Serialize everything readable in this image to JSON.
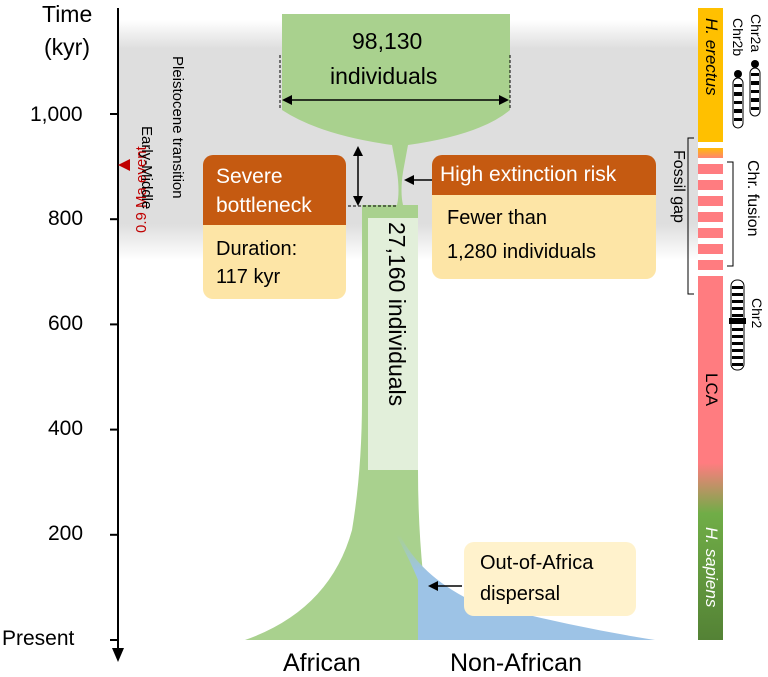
{
  "axis": {
    "title_line1": "Time",
    "title_line2": "(kyr)",
    "ticks": [
      {
        "value": 1000,
        "label": "1,000"
      },
      {
        "value": 800,
        "label": "800"
      },
      {
        "value": 600,
        "label": "600"
      },
      {
        "value": 400,
        "label": "400"
      },
      {
        "value": 200,
        "label": "200"
      },
      {
        "value": 0,
        "label": "Present"
      }
    ]
  },
  "transition_label": {
    "line1": "Early-Middle",
    "line2": "Pleistocene transition"
  },
  "ma_event_label": "0.9 Ma event",
  "top_population": {
    "line1": "98,130",
    "line2": "individuals"
  },
  "neck_population": "27,160 individuals",
  "bottleneck_box": {
    "head_line1": "Severe",
    "head_line2": "bottleneck",
    "body_line1": "Duration:",
    "body_line2": "117 kyr"
  },
  "risk_box": {
    "head": "High extinction risk",
    "body_line1": "Fewer than",
    "body_line2": "1,280 individuals"
  },
  "dispersal_box": {
    "line1": "Out-of-Africa",
    "line2": "dispersal"
  },
  "bottom_labels": {
    "african": "African",
    "non_african": "Non-African"
  },
  "side_bar": {
    "top_label": "H. erectus",
    "middle_label": "LCA",
    "bottom_label": "H. sapiens",
    "fossil_gap": "Fossil gap",
    "chr_fusion": "Chr. fusion",
    "chr2a": "Chr2a",
    "chr2b": "Chr2b",
    "chr2": "Chr2"
  },
  "colors": {
    "african": "#a9d18e",
    "non_african": "#9dc3e6",
    "box_head": "#c55a11",
    "box_body": "#fde5a6",
    "event_red": "#c00000",
    "erectus": "#ffc000",
    "lca": "#ff7c80",
    "sapiens": "#548235",
    "band": "#dcdcdc"
  }
}
